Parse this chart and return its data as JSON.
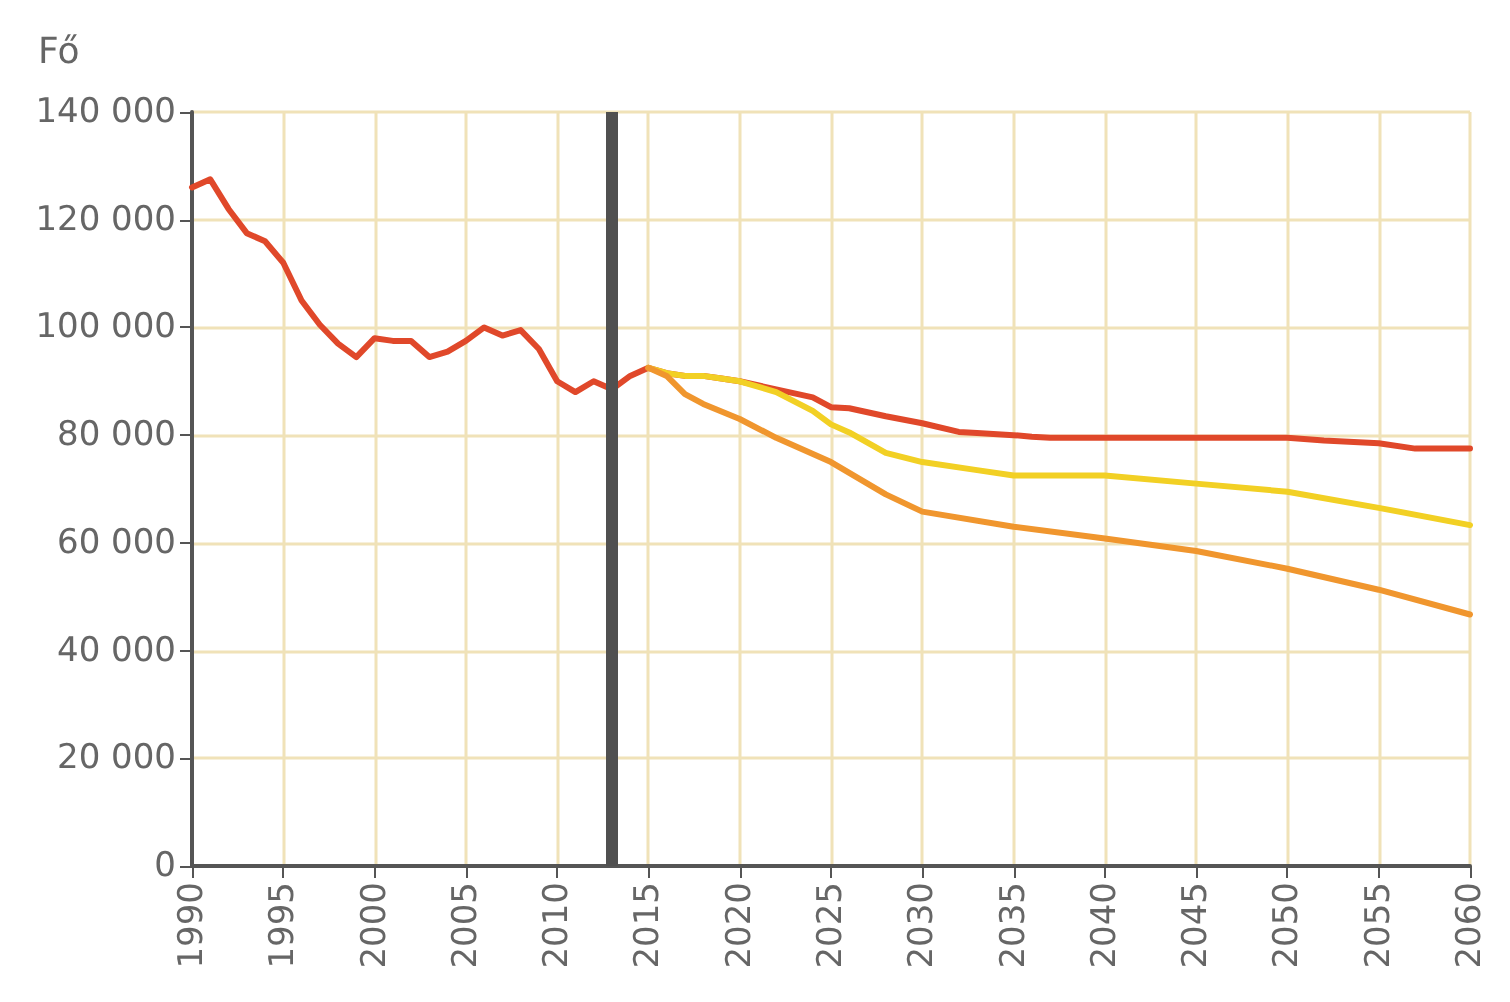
{
  "chart_data": {
    "type": "line",
    "ylabel": "Fő",
    "xlim": [
      1990,
      2060
    ],
    "xticks": [
      1990,
      1995,
      2000,
      2005,
      2010,
      2015,
      2020,
      2025,
      2030,
      2035,
      2040,
      2045,
      2050,
      2055,
      2060
    ],
    "ylim": [
      0,
      140000
    ],
    "yticks": [
      0,
      {
        "value": 20000,
        "label": "20 000"
      },
      {
        "value": 40000,
        "label": "40 000"
      },
      {
        "value": 60000,
        "label": "60 000"
      },
      {
        "value": 80000,
        "label": "80 000"
      },
      {
        "value": 100000,
        "label": "100 000"
      },
      {
        "value": 120000,
        "label": "120 000"
      },
      {
        "value": 140000,
        "label": "140 000"
      }
    ],
    "grid": true,
    "marker": "none",
    "line_style": "solid",
    "ref_lines": [
      {
        "axis": "x",
        "value": 2013,
        "color": "#505050"
      }
    ],
    "series": [
      {
        "color": "#e0482a",
        "x": [
          1990,
          1991,
          1992,
          1993,
          1994,
          1995,
          1996,
          1997,
          1998,
          1999,
          2000,
          2001,
          2002,
          2003,
          2004,
          2005,
          2006,
          2007,
          2008,
          2009,
          2010,
          2011,
          2012,
          2013,
          2014,
          2015,
          2016,
          2017,
          2018,
          2019,
          2020,
          2022,
          2024,
          2025,
          2026,
          2028,
          2030,
          2032,
          2033,
          2035,
          2036,
          2037,
          2040,
          2045,
          2050,
          2052,
          2055,
          2057,
          2060
        ],
        "values": [
          126000,
          127500,
          122000,
          117500,
          116000,
          112000,
          105000,
          100500,
          97000,
          94500,
          98000,
          97500,
          97500,
          94500,
          95500,
          97500,
          100000,
          98500,
          99500,
          96000,
          90000,
          88000,
          90000,
          88500,
          91000,
          92500,
          91500,
          91000,
          91000,
          90500,
          90000,
          88500,
          87000,
          85200,
          85000,
          83500,
          82200,
          80600,
          80400,
          80000,
          79700,
          79500,
          79500,
          79500,
          79500,
          79000,
          78500,
          77500,
          77500
        ]
      },
      {
        "color": "#f2d024",
        "x": [
          2015,
          2016,
          2017,
          2018,
          2019,
          2020,
          2022,
          2024,
          2025,
          2026,
          2028,
          2030,
          2033,
          2035,
          2040,
          2045,
          2050,
          2055,
          2060
        ],
        "values": [
          92500,
          91500,
          91000,
          91000,
          90500,
          90000,
          88000,
          84500,
          82000,
          80500,
          76700,
          75000,
          73500,
          72500,
          72500,
          71000,
          69500,
          66500,
          63300
        ]
      },
      {
        "color": "#f0962e",
        "x": [
          2015,
          2016,
          2017,
          2018,
          2020,
          2022,
          2025,
          2028,
          2030,
          2035,
          2040,
          2045,
          2050,
          2055,
          2060
        ],
        "values": [
          92500,
          91000,
          87600,
          85800,
          83000,
          79500,
          75000,
          69000,
          65800,
          63000,
          60800,
          58500,
          55200,
          51300,
          46700
        ]
      }
    ]
  }
}
